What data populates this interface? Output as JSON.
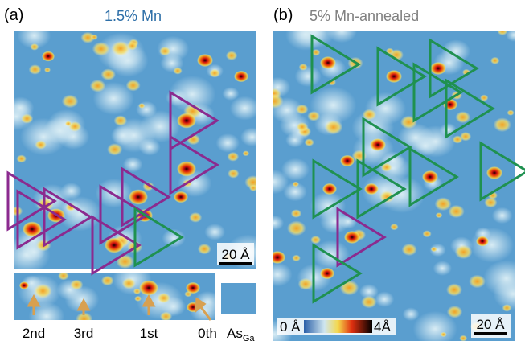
{
  "panel_a": {
    "label": "(a)",
    "title": "1.5% Mn",
    "scale": "20 Å",
    "arrows": [
      "2nd",
      "3rd",
      "1st",
      "0th"
    ],
    "defect": {
      "main": "As",
      "sub": "Ga"
    }
  },
  "panel_b": {
    "label": "(b)",
    "title": "5% Mn-annealed",
    "scale": "20 Å",
    "colorbar": {
      "min": "0 Å",
      "max": "4Å"
    }
  }
}
